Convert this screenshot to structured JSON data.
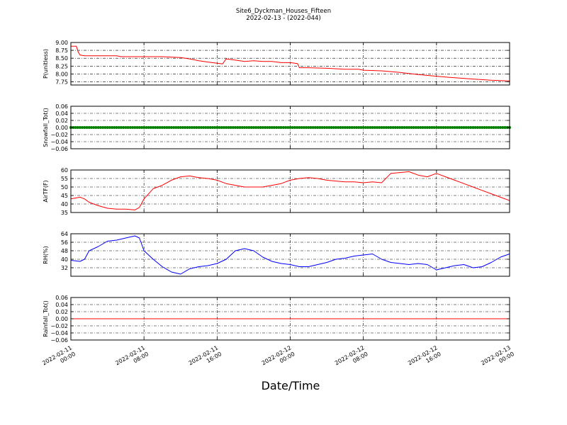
{
  "figure": {
    "title": "Site6_Dyckman_Houses_Fifteen",
    "subtitle": "2022-02-13 - (2022-044)",
    "xlabel": "Date/Time"
  },
  "chart_data": [
    {
      "type": "line",
      "ylabel": "P(unitless)",
      "ylim": [
        7.65,
        9.0
      ],
      "yticks": [
        "9.00",
        "8.75",
        "8.50",
        "8.25",
        "8.00",
        "7.75"
      ],
      "ytick_values": [
        9.0,
        8.75,
        8.5,
        8.25,
        8.0,
        7.75
      ],
      "grid": true,
      "series": [
        {
          "color": "#ff0000",
          "x": [
            0,
            0.6,
            0.8,
            1.0,
            1.5,
            3,
            5,
            5.5,
            8,
            10,
            12,
            13,
            14,
            15,
            16,
            16.6,
            17,
            17.5,
            18,
            19,
            20,
            21,
            22,
            23,
            24,
            24.8,
            25,
            26,
            28,
            30,
            31.5,
            32,
            34,
            36,
            38,
            40,
            42,
            44,
            46,
            48
          ],
          "y": [
            8.88,
            8.88,
            8.7,
            8.6,
            8.58,
            8.58,
            8.58,
            8.55,
            8.55,
            8.55,
            8.52,
            8.48,
            8.42,
            8.38,
            8.34,
            8.32,
            8.48,
            8.46,
            8.44,
            8.4,
            8.42,
            8.4,
            8.4,
            8.36,
            8.36,
            8.33,
            8.2,
            8.2,
            8.18,
            8.15,
            8.15,
            8.12,
            8.1,
            8.05,
            7.98,
            7.93,
            7.88,
            7.84,
            7.8,
            7.78
          ]
        }
      ]
    },
    {
      "type": "scatter",
      "ylabel": "Snowfall_Tot()",
      "ylim": [
        -0.06,
        0.06
      ],
      "yticks": [
        "0.06",
        "0.04",
        "0.02",
        "0.00",
        "−0.02",
        "−0.04",
        "−0.06"
      ],
      "ytick_values": [
        0.06,
        0.04,
        0.02,
        0.0,
        -0.02,
        -0.04,
        -0.06
      ],
      "grid": true,
      "series": [
        {
          "color": "#008000",
          "constant": 0.0,
          "step": 0.25
        }
      ]
    },
    {
      "type": "line",
      "ylabel": "AirTF(F)",
      "ylim": [
        35,
        60
      ],
      "yticks": [
        "60",
        "55",
        "50",
        "45",
        "40",
        "35"
      ],
      "ytick_values": [
        60,
        55,
        50,
        45,
        40,
        35
      ],
      "grid": true,
      "series": [
        {
          "color": "#ff0000",
          "x": [
            0,
            1,
            1.5,
            2,
            3,
            4,
            5,
            6,
            7,
            7.5,
            8,
            9,
            10,
            11,
            12,
            13,
            14,
            15,
            16,
            17,
            18,
            19,
            20,
            21,
            22,
            23,
            24,
            25,
            26,
            27,
            28,
            29,
            30,
            31,
            32,
            33,
            34,
            35,
            36,
            37,
            38,
            39,
            40,
            41,
            42,
            43,
            44,
            45,
            46,
            47,
            48
          ],
          "y": [
            43,
            44,
            43,
            41,
            39,
            37.5,
            37,
            37,
            36.5,
            38,
            43,
            49,
            51,
            54,
            56,
            56.5,
            55.5,
            55,
            54,
            52,
            51,
            50,
            50,
            50,
            51,
            52,
            54,
            55,
            55.5,
            55,
            54,
            53.5,
            53,
            53,
            52.5,
            53,
            52.5,
            58,
            58.5,
            59,
            57,
            56,
            58,
            56,
            54,
            52,
            50,
            48,
            46,
            44,
            42
          ]
        }
      ]
    },
    {
      "type": "line",
      "ylabel": "RH(%)",
      "ylim": [
        24,
        64
      ],
      "yticks": [
        "64",
        "56",
        "48",
        "40",
        "32"
      ],
      "ytick_values": [
        64,
        56,
        48,
        40,
        32
      ],
      "grid": true,
      "series": [
        {
          "color": "#0000ff",
          "x": [
            0,
            1,
            1.5,
            2,
            3,
            4,
            5,
            6,
            7,
            7.5,
            8,
            9,
            10,
            11,
            12,
            13,
            14,
            15,
            16,
            17,
            18,
            19,
            20,
            21,
            22,
            23,
            24,
            25,
            26,
            27,
            28,
            29,
            30,
            31,
            32,
            33,
            34,
            35,
            36,
            37,
            38,
            39,
            40,
            41,
            42,
            43,
            44,
            45,
            46,
            47,
            48
          ],
          "y": [
            39,
            38,
            40,
            48,
            52,
            57,
            58,
            60,
            62,
            60,
            48,
            40,
            33,
            28,
            26,
            31,
            33,
            34,
            36,
            40,
            48,
            50,
            48,
            42,
            38,
            36,
            35,
            33,
            33,
            35,
            37,
            40,
            41,
            43,
            44,
            45,
            40,
            37,
            36,
            35,
            36,
            35,
            30,
            32,
            34,
            35,
            32,
            33,
            37,
            42,
            45
          ]
        }
      ]
    },
    {
      "type": "line",
      "ylabel": "Rainfall_Tot()",
      "ylim": [
        -0.06,
        0.06
      ],
      "yticks": [
        "0.06",
        "0.04",
        "0.02",
        "0.00",
        "−0.02",
        "−0.04",
        "−0.06"
      ],
      "ytick_values": [
        0.06,
        0.04,
        0.02,
        0.0,
        -0.02,
        -0.04,
        -0.06
      ],
      "grid": true,
      "series": [
        {
          "color": "#ff0000",
          "x": [
            0,
            48
          ],
          "y": [
            0.0,
            0.0
          ]
        }
      ]
    }
  ],
  "xaxis": {
    "xlim": [
      0,
      48
    ],
    "tick_values": [
      0,
      8,
      16,
      24,
      32,
      40,
      48
    ],
    "tick_labels": [
      [
        "2022-02-11",
        "00:00"
      ],
      [
        "2022-02-11",
        "08:00"
      ],
      [
        "2022-02-11",
        "16:00"
      ],
      [
        "2022-02-12",
        "00:00"
      ],
      [
        "2022-02-12",
        "08:00"
      ],
      [
        "2022-02-12",
        "16:00"
      ],
      [
        "2022-02-13",
        "00:00"
      ]
    ]
  }
}
